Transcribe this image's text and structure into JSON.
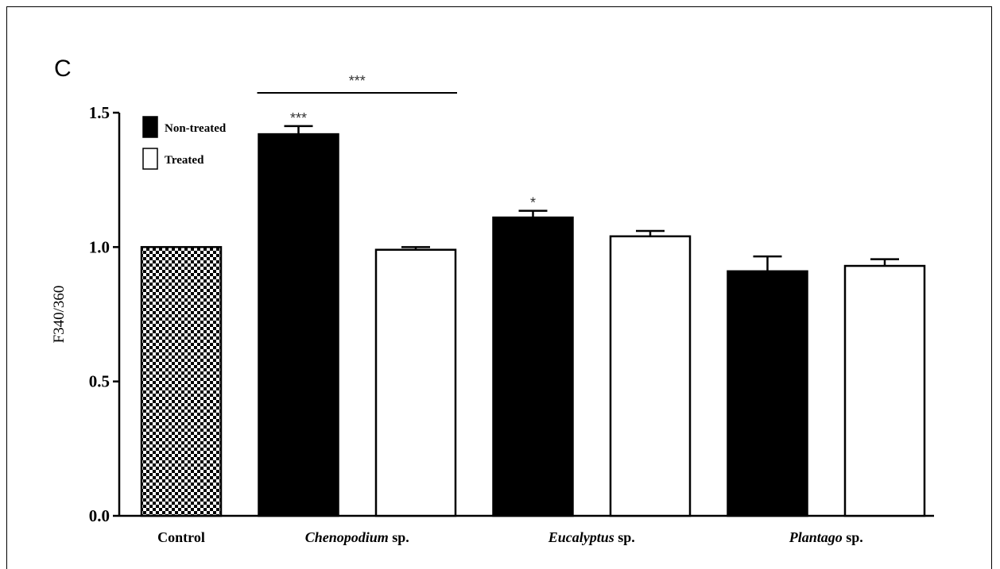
{
  "panel_label": "C",
  "chart_data": {
    "type": "bar",
    "title": "",
    "xlabel": "",
    "ylabel": "F340/360",
    "ylim": [
      0,
      1.5
    ],
    "yticks": [
      "0.0",
      "0.5",
      "1.0",
      "1.5"
    ],
    "categories": [
      {
        "genus": "Control",
        "suffix": ""
      },
      {
        "genus": "Chenopodium",
        "suffix": "sp."
      },
      {
        "genus": "Eucalyptus",
        "suffix": "sp."
      },
      {
        "genus": "Plantago",
        "suffix": "sp."
      }
    ],
    "legend": {
      "position": "top-left",
      "entries": [
        {
          "label": "Non-treated",
          "color": "#000000"
        },
        {
          "label": "Treated",
          "color": "#ffffff"
        }
      ]
    },
    "bars": [
      {
        "category": "Control",
        "group": "Control",
        "value": 1.0,
        "error": 0,
        "fill": "checker",
        "sig": ""
      },
      {
        "category": "Chenopodium sp.",
        "group": "Non-treated",
        "value": 1.42,
        "error": 0.03,
        "fill": "#000000",
        "sig": "***"
      },
      {
        "category": "Chenopodium sp.",
        "group": "Treated",
        "value": 0.99,
        "error": 0.01,
        "fill": "#ffffff",
        "sig": ""
      },
      {
        "category": "Eucalyptus sp.",
        "group": "Non-treated",
        "value": 1.11,
        "error": 0.025,
        "fill": "#000000",
        "sig": "*"
      },
      {
        "category": "Eucalyptus sp.",
        "group": "Treated",
        "value": 1.04,
        "error": 0.02,
        "fill": "#ffffff",
        "sig": ""
      },
      {
        "category": "Plantago sp.",
        "group": "Non-treated",
        "value": 0.91,
        "error": 0.055,
        "fill": "#000000",
        "sig": ""
      },
      {
        "category": "Plantago sp.",
        "group": "Treated",
        "value": 0.93,
        "error": 0.025,
        "fill": "#ffffff",
        "sig": ""
      }
    ],
    "bracket": {
      "from_bar": 1,
      "to_bar": 2,
      "label": "***"
    }
  }
}
